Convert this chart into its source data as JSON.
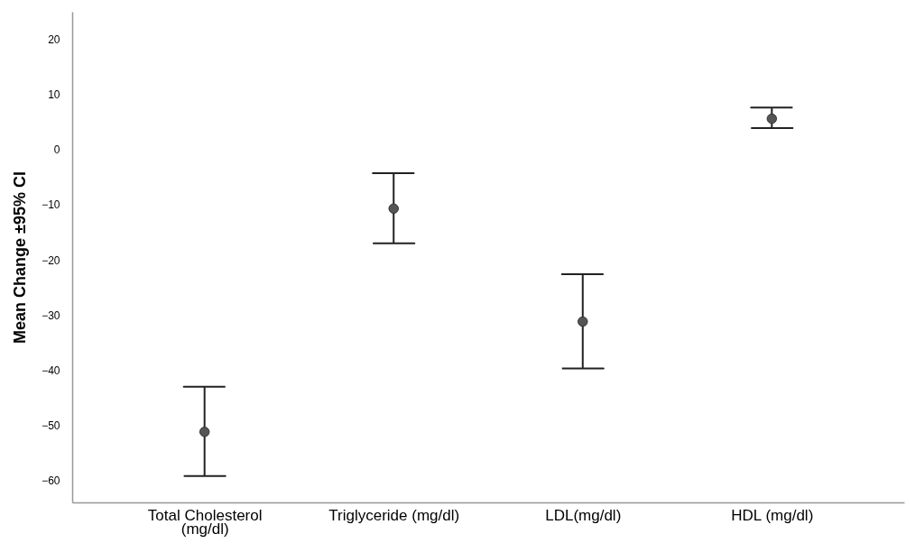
{
  "chart_data": {
    "type": "scatter",
    "ylabel": "Mean Change ±95% CI",
    "categories": [
      "Total Cholesterol\n(mg/dl)",
      "Triglyceride (mg/dl)",
      "LDL(mg/dl)",
      "HDL (mg/dl)"
    ],
    "color": "#555555",
    "values": [
      -51.2,
      -10.7,
      -31.2,
      5.6
    ],
    "errors": [
      [
        -59.2,
        -43.0
      ],
      [
        -17.0,
        -4.3
      ],
      [
        -39.7,
        -22.6
      ],
      [
        3.9,
        7.6
      ]
    ],
    "ylim": [
      -64,
      25
    ],
    "yticks": [
      -60,
      -50,
      -40,
      -30,
      -20,
      -10,
      0,
      10,
      20
    ],
    "marker": "circle",
    "grid": false
  }
}
